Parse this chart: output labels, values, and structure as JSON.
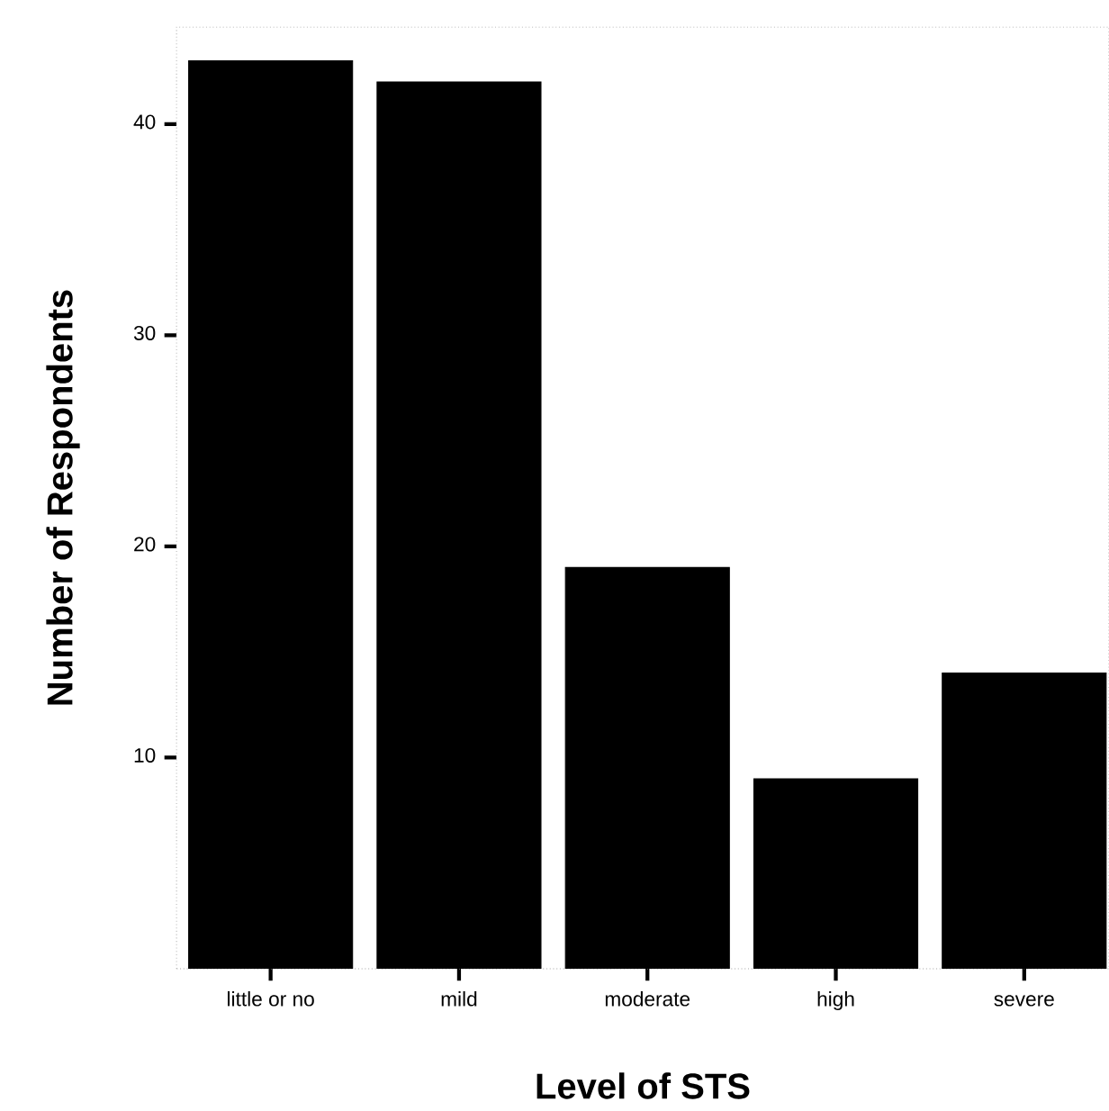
{
  "chart_data": {
    "type": "bar",
    "xlabel": "Level of STS",
    "ylabel": "Number of Respondents",
    "categories": [
      "little or no",
      "mild",
      "moderate",
      "high",
      "severe"
    ],
    "values": [
      43,
      42,
      19,
      9,
      14
    ],
    "color": "#000000",
    "ylim": [
      0,
      44.6
    ],
    "yticks": [
      10,
      20,
      30,
      40
    ],
    "grid": false
  }
}
